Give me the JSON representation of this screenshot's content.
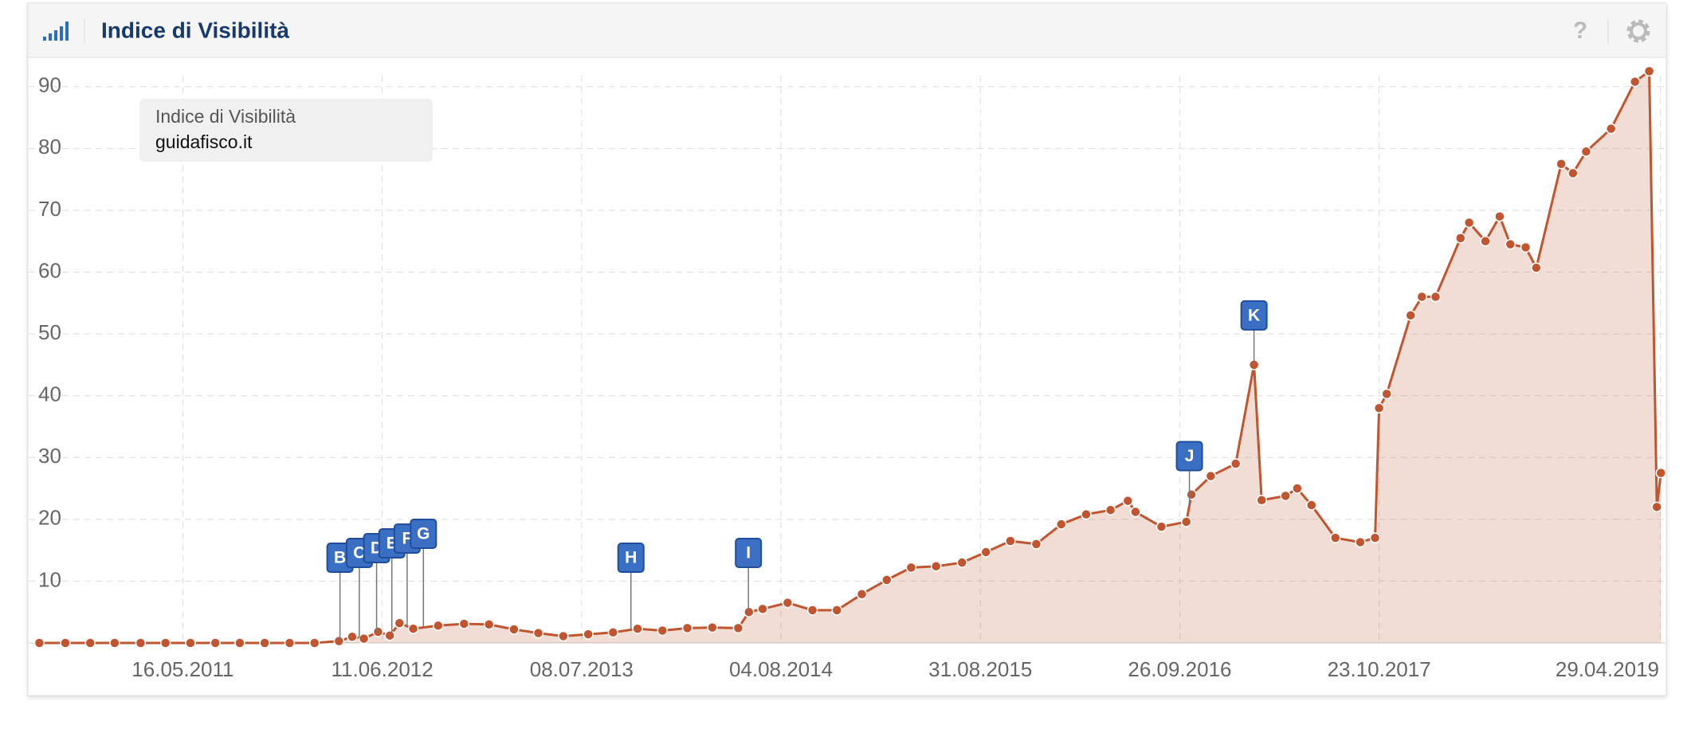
{
  "chart_data": {
    "type": "line",
    "title": "Indice di Visibilità",
    "legend_title": "Indice di Visibilità",
    "x": [
      "07.08.2010",
      "27.09.2010",
      "15.11.2010",
      "02.01.2011",
      "22.02.2011",
      "12.04.2011",
      "31.05.2011",
      "19.07.2011",
      "05.09.2011",
      "24.10.2011",
      "12.12.2011",
      "30.01.2012",
      "18.03.2012",
      "13.04.2012",
      "06.05.2012",
      "03.06.2012",
      "26.06.2012",
      "15.07.2012",
      "11.08.2012",
      "29.09.2012",
      "19.11.2012",
      "07.01.2013",
      "25.02.2013",
      "14.04.2013",
      "02.06.2013",
      "21.07.2013",
      "08.09.2013",
      "26.10.2013",
      "14.12.2013",
      "01.02.2014",
      "22.03.2014",
      "12.05.2014",
      "02.06.2014",
      "29.06.2014",
      "17.08.2014",
      "05.10.2014",
      "22.11.2014",
      "10.01.2015",
      "28.02.2015",
      "17.04.2015",
      "05.06.2015",
      "26.07.2015",
      "11.09.2015",
      "29.10.2015",
      "19.12.2015",
      "06.02.2016",
      "26.03.2016",
      "13.05.2016",
      "16.06.2016",
      "01.07.2016",
      "21.08.2016",
      "09.10.2016",
      "19.10.2016",
      "26.11.2016",
      "14.01.2017",
      "19.02.2017",
      "06.03.2017",
      "22.04.2017",
      "15.05.2017",
      "12.06.2017",
      "29.07.2017",
      "16.09.2017",
      "15.10.2017",
      "23.10.2017",
      "07.11.2017",
      "24.12.2017",
      "15.01.2018",
      "11.02.2018",
      "01.04.2018",
      "18.04.2018",
      "20.05.2018",
      "17.06.2018",
      "08.07.2018",
      "07.08.2018",
      "28.08.2018",
      "16.10.2018",
      "08.11.2018",
      "04.12.2018",
      "22.01.2019",
      "10.03.2019",
      "07.04.2019",
      "22.04.2019",
      "30.04.2019"
    ],
    "series": [
      {
        "name": "guidafisco.it",
        "color": "#c0552f",
        "values": [
          0,
          0,
          0,
          0,
          0,
          0,
          0,
          0,
          0,
          0,
          0,
          0,
          0.3,
          1,
          0.7,
          1.8,
          1.2,
          3.2,
          2.3,
          2.8,
          3.1,
          3.0,
          2.2,
          1.6,
          1.1,
          1.4,
          1.7,
          2.3,
          2.0,
          2.4,
          2.5,
          2.4,
          5.0,
          5.5,
          6.5,
          5.3,
          5.3,
          7.9,
          10.2,
          12.2,
          12.4,
          13.0,
          14.7,
          16.5,
          16.0,
          19.2,
          20.8,
          21.5,
          23,
          21.2,
          18.8,
          19.6,
          24,
          27,
          29,
          45,
          23.1,
          23.8,
          25,
          22.3,
          17,
          16.3,
          17,
          38,
          40.3,
          53,
          56,
          56,
          65.5,
          68,
          65,
          69,
          64.5,
          64,
          60.7,
          77.5,
          76,
          79.5,
          83.2,
          90.8,
          92.5,
          22,
          27.5
        ]
      }
    ],
    "xlim": [
      "17.07.2010",
      "09.05.2019"
    ],
    "xticks": [
      "16.05.2011",
      "11.06.2012",
      "08.07.2013",
      "04.08.2014",
      "31.08.2015",
      "26.09.2016",
      "23.10.2017",
      "29.04.2019"
    ],
    "ylim": [
      0,
      95
    ],
    "yticks": [
      10,
      20,
      30,
      40,
      50,
      60,
      70,
      80,
      90
    ],
    "grid": true,
    "flags": {
      "labels": [
        "B",
        "C",
        "D",
        "E",
        "F",
        "G",
        "H",
        "I",
        "J",
        "K"
      ],
      "x": [
        "20.03.2012",
        "27.04.2012",
        "31.05.2012",
        "30.06.2012",
        "30.07.2012",
        "31.08.2012",
        "13.10.2013",
        "01.06.2014",
        "15.10.2016",
        "19.02.2017"
      ]
    }
  }
}
